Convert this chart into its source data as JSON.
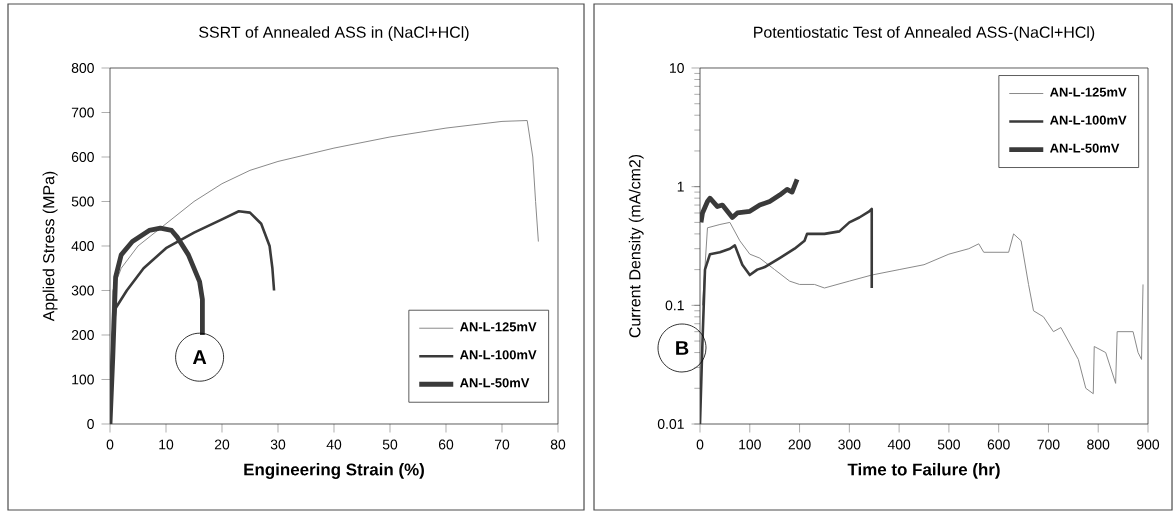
{
  "chart_data": [
    {
      "type": "line",
      "title": "SSRT of  Annealed ASS  in (NaCl+HCl)",
      "xlabel": "Engineering Strain  (%)",
      "ylabel": "Applied Stress (MPa)",
      "xlim": [
        0,
        80
      ],
      "ylim": [
        0,
        800
      ],
      "xticks": [
        0,
        10,
        20,
        30,
        40,
        50,
        60,
        70,
        80
      ],
      "yticks": [
        0,
        100,
        200,
        300,
        400,
        500,
        600,
        700,
        800
      ],
      "legend": "bottom right",
      "grid": false,
      "marker": "none",
      "annotations": [
        "A"
      ],
      "series": [
        {
          "name": "AN-L-125mV",
          "color": "#8a8a8a",
          "x": [
            0,
            0.5,
            2,
            5,
            10,
            15,
            20,
            25,
            30,
            35,
            40,
            50,
            60,
            70,
            74.5,
            75.5,
            76,
            76.5
          ],
          "values": [
            0,
            300,
            350,
            400,
            450,
            500,
            540,
            570,
            590,
            605,
            620,
            645,
            665,
            680,
            682,
            600,
            500,
            410
          ]
        },
        {
          "name": "AN-L-100mV",
          "color": "#3a3a3a",
          "x": [
            0,
            0.5,
            1,
            3,
            6,
            10,
            15,
            20,
            23,
            25,
            27,
            28.5,
            29,
            29.3
          ],
          "values": [
            0,
            200,
            260,
            300,
            350,
            395,
            430,
            460,
            478,
            475,
            450,
            400,
            350,
            300
          ]
        },
        {
          "name": "AN-L-50mV",
          "color": "#3a3a3a",
          "x": [
            0,
            0.5,
            1,
            2,
            4,
            7,
            9,
            11,
            12,
            14,
            16,
            16.5,
            16.5
          ],
          "values": [
            0,
            150,
            330,
            380,
            410,
            435,
            440,
            435,
            420,
            380,
            320,
            280,
            200
          ]
        }
      ]
    },
    {
      "type": "line",
      "title": "Potentiostatic Test  of Annealed ASS-(NaCl+HCl)",
      "xlabel": "Time to Failure (hr)",
      "ylabel": "Current Density  (mA/cm2)",
      "log": "y",
      "xlim": [
        0,
        900
      ],
      "ylim": [
        0.01,
        10
      ],
      "xticks": [
        0,
        100,
        200,
        300,
        400,
        500,
        600,
        700,
        800,
        900
      ],
      "yticks": [
        0.01,
        0.1,
        1,
        10
      ],
      "legend": "top right",
      "grid": false,
      "marker": "none",
      "annotations": [
        "B"
      ],
      "series": [
        {
          "name": "AN-L-125mV",
          "color": "#8a8a8a",
          "x": [
            5,
            15,
            40,
            60,
            80,
            100,
            120,
            150,
            180,
            200,
            230,
            250,
            300,
            345,
            400,
            450,
            500,
            540,
            560,
            570,
            620,
            630,
            645,
            660,
            670,
            690,
            710,
            725,
            740,
            760,
            775,
            790,
            792,
            815,
            835,
            838,
            870,
            880,
            887,
            890
          ],
          "values": [
            0.1,
            0.45,
            0.48,
            0.5,
            0.35,
            0.27,
            0.25,
            0.2,
            0.16,
            0.15,
            0.15,
            0.14,
            0.16,
            0.18,
            0.2,
            0.22,
            0.27,
            0.3,
            0.33,
            0.28,
            0.28,
            0.4,
            0.35,
            0.15,
            0.09,
            0.08,
            0.06,
            0.065,
            0.05,
            0.035,
            0.02,
            0.018,
            0.045,
            0.04,
            0.022,
            0.06,
            0.06,
            0.04,
            0.035,
            0.15
          ]
        },
        {
          "name": "AN-L-100mV",
          "color": "#3a3a3a",
          "x": [
            0,
            5,
            10,
            20,
            40,
            60,
            70,
            85,
            100,
            115,
            130,
            160,
            190,
            210,
            215,
            250,
            280,
            300,
            320,
            340,
            345,
            345
          ],
          "values": [
            0.01,
            0.05,
            0.2,
            0.27,
            0.28,
            0.3,
            0.32,
            0.22,
            0.18,
            0.2,
            0.21,
            0.25,
            0.3,
            0.35,
            0.4,
            0.4,
            0.42,
            0.5,
            0.55,
            0.62,
            0.65,
            0.14
          ]
        },
        {
          "name": "AN-L-50mV",
          "color": "#3a3a3a",
          "x": [
            2,
            5,
            15,
            20,
            35,
            45,
            65,
            75,
            100,
            120,
            140,
            160,
            175,
            185,
            195
          ],
          "values": [
            0.5,
            0.6,
            0.75,
            0.8,
            0.68,
            0.7,
            0.55,
            0.6,
            0.62,
            0.7,
            0.75,
            0.85,
            0.95,
            0.9,
            1.15
          ]
        }
      ]
    }
  ]
}
